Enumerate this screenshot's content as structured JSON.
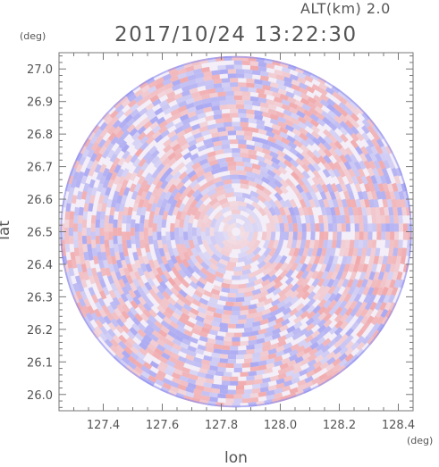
{
  "header": {
    "altitude_label": "ALT(km) 2.0",
    "timestamp": "2017/10/24 13:22:30"
  },
  "chart_data": {
    "type": "heatmap",
    "title": "2017/10/24 13:22:30",
    "xlabel": "lon",
    "ylabel": "lat",
    "x_unit": "(deg)",
    "y_unit": "(deg)",
    "xlim": [
      127.25,
      128.45
    ],
    "ylim": [
      25.95,
      27.05
    ],
    "x_ticks": [
      "127.4",
      "127.6",
      "127.8",
      "128.0",
      "128.2",
      "128.4"
    ],
    "y_ticks": [
      "26.0",
      "26.1",
      "26.2",
      "26.3",
      "26.4",
      "26.5",
      "26.6",
      "26.7",
      "26.8",
      "26.9",
      "27.0"
    ],
    "radar_center": [
      127.85,
      26.5
    ],
    "radar_range_deg": 0.54,
    "colormap": {
      "negative": "#8c8cf0",
      "zero": "#ffffff",
      "positive": "#f08c8c"
    }
  }
}
